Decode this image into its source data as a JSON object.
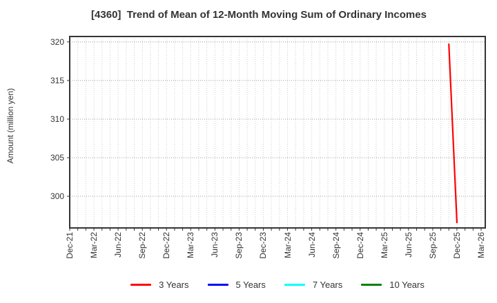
{
  "chart_data": {
    "type": "line",
    "title": "[4360]  Trend of Mean of 12-Month Moving Sum of Ordinary Incomes",
    "ylabel": "Amount (million yen)",
    "xlabel": "",
    "x_tick_labels": [
      "Dec-21",
      "Mar-22",
      "Jun-22",
      "Sep-22",
      "Dec-22",
      "Mar-23",
      "Jun-23",
      "Sep-23",
      "Dec-23",
      "Mar-24",
      "Jun-24",
      "Sep-24",
      "Dec-24",
      "Mar-25",
      "Jun-25",
      "Sep-25",
      "Dec-25",
      "Mar-26"
    ],
    "x_total_months": 52,
    "y_ticks": [
      300,
      305,
      310,
      315,
      320
    ],
    "ylim": [
      295.9,
      320.7
    ],
    "grid": "dotted; vertical line every month, horizontal line at every y tick",
    "legend_position": "bottom-center",
    "colors": {
      "background": "#ffffff",
      "axis": "#333333",
      "text": "#333333",
      "grid_major": "#999999",
      "grid_minor": "#cccccc"
    },
    "series": [
      {
        "name": "3 Years",
        "color": "#ff0000",
        "points": [
          {
            "label": "Nov-25",
            "month_index": 47,
            "value": 319.7
          },
          {
            "label": "Dec-25",
            "month_index": 48,
            "value": 296.6
          }
        ]
      },
      {
        "name": "5 Years",
        "color": "#0000ff",
        "points": []
      },
      {
        "name": "7 Years",
        "color": "#00ffff",
        "points": []
      },
      {
        "name": "10 Years",
        "color": "#008000",
        "points": []
      }
    ]
  }
}
